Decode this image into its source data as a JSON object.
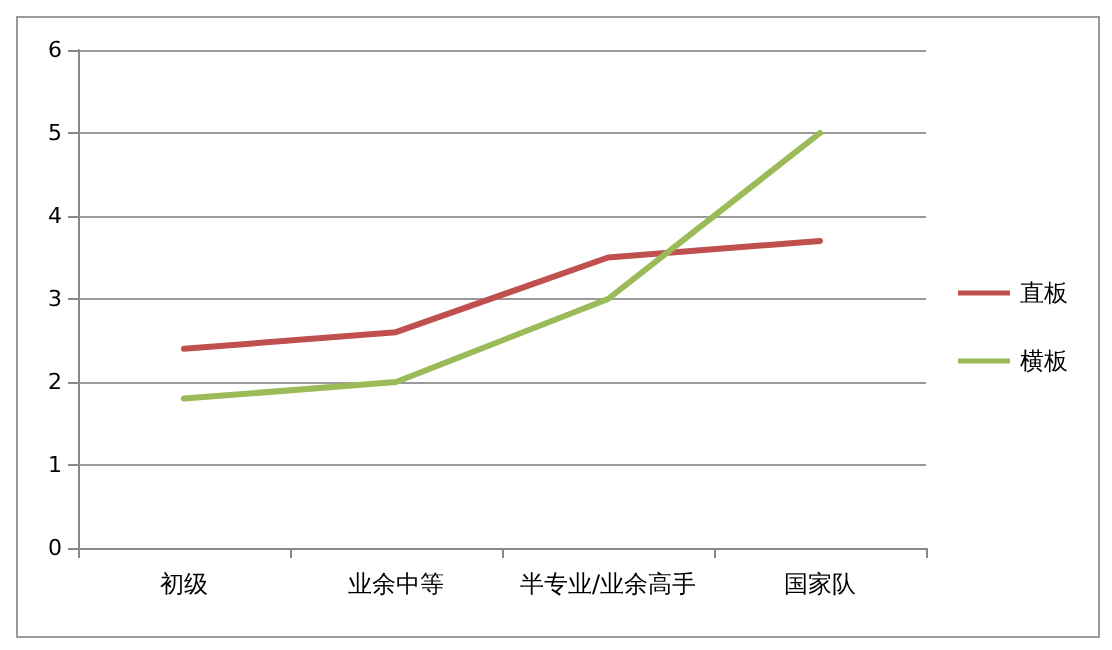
{
  "chart_data": {
    "type": "line",
    "categories": [
      "初级",
      "业余中等",
      "半专业/业余高手",
      "国家队"
    ],
    "series": [
      {
        "name": "直板",
        "color": "#c0504d",
        "values": [
          2.4,
          2.6,
          3.5,
          3.7
        ]
      },
      {
        "name": "横板",
        "color": "#9bbb59",
        "values": [
          1.8,
          2.0,
          3.0,
          5.0
        ]
      }
    ],
    "ylim": [
      0,
      6
    ],
    "yticks": [
      0,
      1,
      2,
      3,
      4,
      5,
      6
    ],
    "grid": "y",
    "legend": "right",
    "marker": "none"
  }
}
